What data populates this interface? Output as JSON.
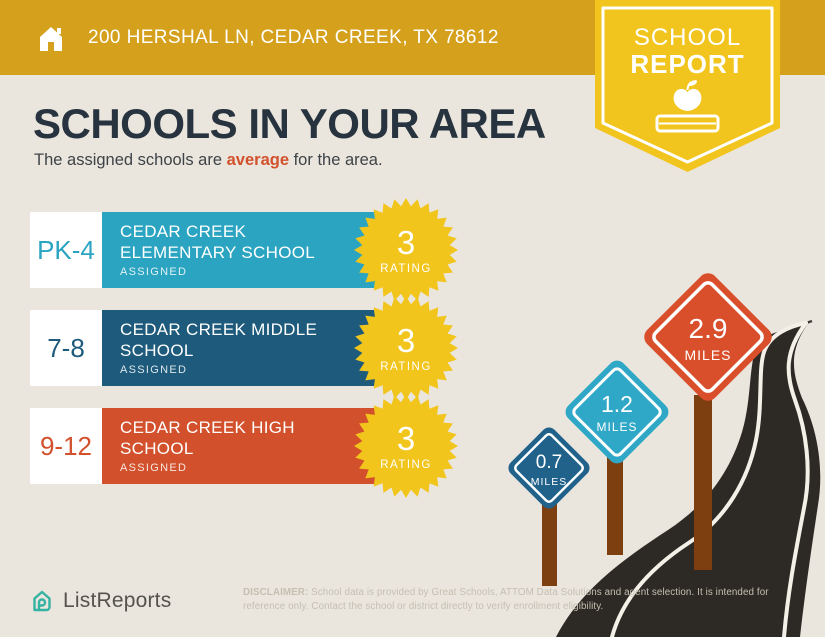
{
  "header": {
    "address": "200 HERSHAL LN, CEDAR CREEK, TX 78612",
    "badge": {
      "line1": "SCHOOL",
      "line2": "REPORT"
    }
  },
  "intro": {
    "title": "SCHOOLS IN YOUR AREA",
    "subtitle_prefix": "The assigned schools are ",
    "subtitle_highlight": "average",
    "subtitle_suffix": " for the area."
  },
  "schools": [
    {
      "grades": "PK-4",
      "name": "CEDAR CREEK ELEMENTARY SCHOOL",
      "status": "ASSIGNED",
      "rating": "3",
      "rating_label": "RATING",
      "bar_color": "#2ba4c1"
    },
    {
      "grades": "7-8",
      "name": "CEDAR CREEK MIDDLE SCHOOL",
      "status": "ASSIGNED",
      "rating": "3",
      "rating_label": "RATING",
      "bar_color": "#1d5a7b"
    },
    {
      "grades": "9-12",
      "name": "CEDAR CREEK HIGH SCHOOL",
      "status": "ASSIGNED",
      "rating": "3",
      "rating_label": "RATING",
      "bar_color": "#d2512c"
    }
  ],
  "distance_signs": [
    {
      "value": "0.7",
      "unit": "MILES",
      "color": "#20628a"
    },
    {
      "value": "1.2",
      "unit": "MILES",
      "color": "#2fa7c6"
    },
    {
      "value": "2.9",
      "unit": "MILES",
      "color": "#d94f2b"
    }
  ],
  "footer": {
    "brand": "ListReports",
    "disclaimer_label": "DISCLAIMER:",
    "disclaimer_text": " School data is provided by Great Schools, ATTOM Data Solutions and agent selection. It is intended for reference only. Contact the school or district directly to verify enrollment eligibility."
  },
  "icons": {
    "home": "white house with door",
    "school_report": "apple on a book",
    "brand_logo": "teal house outline"
  },
  "colors": {
    "header_gold": "#d5a11d",
    "badge_yellow": "#f2c51e",
    "starburst_yellow": "#f2c51d",
    "accent_red": "#d2512c",
    "background": "#eae6dd",
    "title_navy": "#27333f",
    "road_dark": "#2d2a25",
    "post_brown": "#7d3f10",
    "logo_teal": "#35b3a2"
  }
}
